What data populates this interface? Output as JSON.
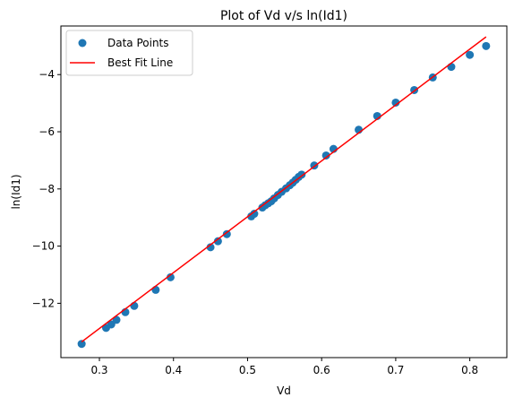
{
  "chart_data": {
    "type": "scatter",
    "title": "Plot of Vd v/s ln(Id1)",
    "xlabel": "Vd",
    "ylabel": "ln(Id1)",
    "xlim": [
      0.248,
      0.85
    ],
    "ylim": [
      -13.9,
      -2.3
    ],
    "xticks": [
      0.3,
      0.4,
      0.5,
      0.6,
      0.7,
      0.8
    ],
    "yticks": [
      -12,
      -10,
      -8,
      -6,
      -4
    ],
    "x_tick_labels": [
      "0.3",
      "0.4",
      "0.5",
      "0.6",
      "0.7",
      "0.8"
    ],
    "y_tick_labels": [
      "−12",
      "−10",
      "−8",
      "−6",
      "−4"
    ],
    "grid": false,
    "legend_position": "top-left",
    "series": [
      {
        "name": "Data Points",
        "kind": "scatter",
        "color": "#1f77b4",
        "x": [
          0.276,
          0.309,
          0.316,
          0.323,
          0.335,
          0.347,
          0.376,
          0.396,
          0.45,
          0.46,
          0.472,
          0.505,
          0.509,
          0.52,
          0.524,
          0.528,
          0.532,
          0.536,
          0.541,
          0.546,
          0.552,
          0.557,
          0.561,
          0.565,
          0.569,
          0.573,
          0.59,
          0.606,
          0.616,
          0.65,
          0.675,
          0.7,
          0.725,
          0.75,
          0.775,
          0.8,
          0.822
        ],
        "y": [
          -13.42,
          -12.86,
          -12.74,
          -12.58,
          -12.31,
          -12.09,
          -11.53,
          -11.09,
          -10.04,
          -9.83,
          -9.58,
          -8.96,
          -8.87,
          -8.65,
          -8.57,
          -8.5,
          -8.43,
          -8.33,
          -8.21,
          -8.1,
          -7.98,
          -7.87,
          -7.78,
          -7.68,
          -7.58,
          -7.5,
          -7.18,
          -6.83,
          -6.6,
          -5.93,
          -5.45,
          -4.98,
          -4.54,
          -4.1,
          -3.73,
          -3.31,
          -3.0
        ]
      },
      {
        "name": "Best Fit Line",
        "kind": "line",
        "color": "#ff0000",
        "x": [
          0.276,
          0.822
        ],
        "y": [
          -13.35,
          -2.68
        ]
      }
    ]
  }
}
